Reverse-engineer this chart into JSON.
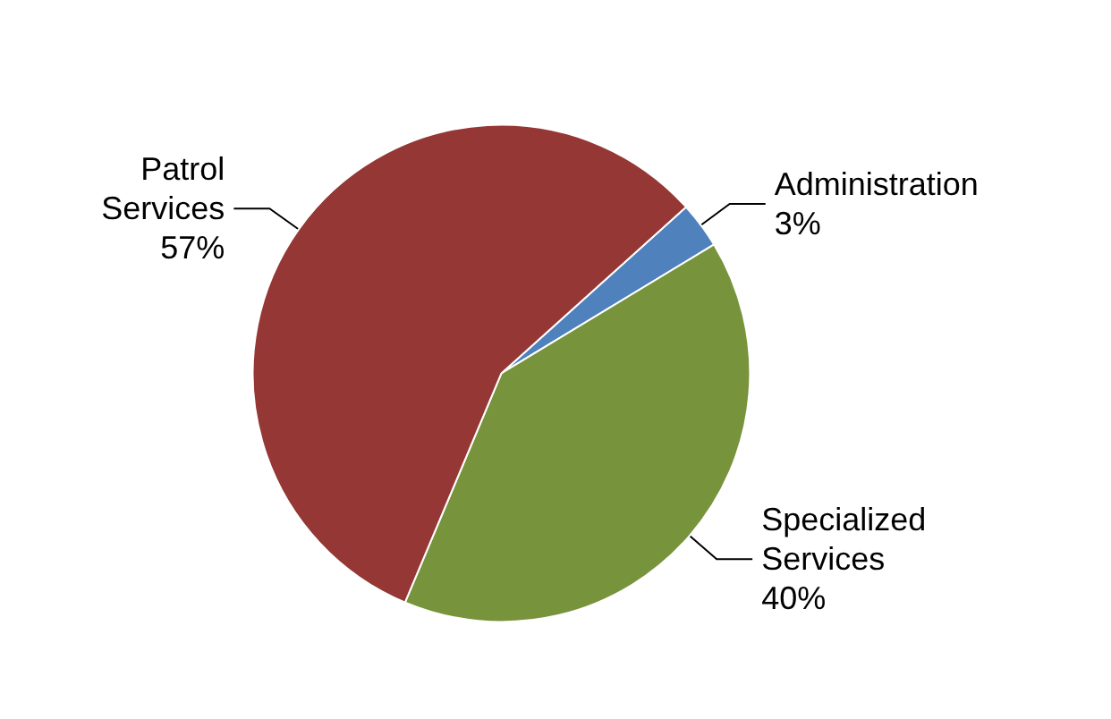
{
  "chart_data": {
    "type": "pie",
    "categories": [
      "Administration",
      "Specialized Services",
      "Patrol Services"
    ],
    "values": [
      3,
      40,
      57
    ],
    "value_labels": [
      "3%",
      "40%",
      "57%"
    ],
    "colors": [
      "#4f81bd",
      "#77933c",
      "#953735"
    ],
    "legend": false
  }
}
